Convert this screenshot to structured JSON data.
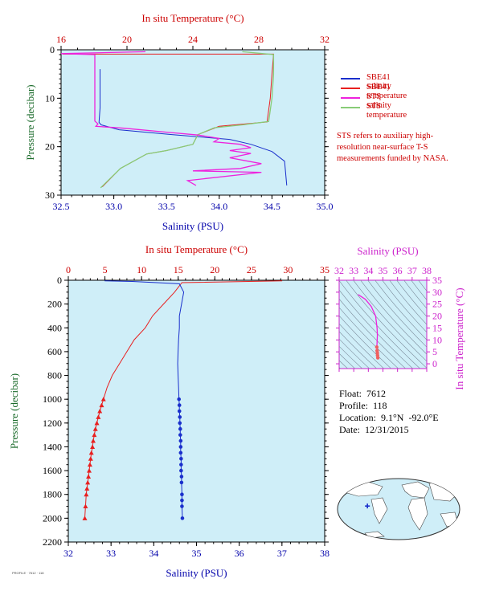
{
  "colors": {
    "plot_bg": "#cfeef8",
    "salinity": "#1a2fcc",
    "temperature": "#e82020",
    "sts_salinity": "#ee22dd",
    "sts_temperature": "#88cc77",
    "temp_axis": "#cc0000",
    "sal_axis": "#0000aa",
    "pressure_axis": "#1a6a2a",
    "ts_axis": "#cc22cc"
  },
  "legend": {
    "items": [
      {
        "label": "SBE41 salinity",
        "color": "#1a2fcc"
      },
      {
        "label": "SBE41 temperature",
        "color": "#e82020"
      },
      {
        "label": "STS salinity",
        "color": "#ee22dd"
      },
      {
        "label": "STS temperature",
        "color": "#88cc77"
      }
    ],
    "note": "STS refers to auxiliary high-resolution near-surface T-S measurements funded by NASA."
  },
  "float_info": {
    "float": "Float:  7612",
    "profile": "Profile:  118",
    "location": "Location:  9.1°N  -92.0°E",
    "date": "Date:  12/31/2015"
  },
  "credit": "PROFILE · 7612 · 118",
  "map": {
    "icon": "world-map-icon",
    "marker_lat": 9.1,
    "marker_lon": -92.0
  },
  "chart_data": [
    {
      "type": "line",
      "name": "upper",
      "top_label": "In situ Temperature (°C)",
      "xlabel": "Salinity (PSU)",
      "ylabel": "Pressure (decibar)",
      "temp_ticks": [
        "16",
        "20",
        "24",
        "28",
        "32"
      ],
      "sal_ticks": [
        "32.5",
        "33.0",
        "33.5",
        "34.0",
        "34.5",
        "35.0"
      ],
      "p_ticks": [
        "0",
        "10",
        "20",
        "30"
      ],
      "xlim_salinity": [
        32.5,
        35.0
      ],
      "xlim_temperature": [
        16,
        32
      ],
      "ylim": [
        30,
        0
      ],
      "series": [
        {
          "key": "sbe41_salinity",
          "axis": "salinity",
          "x": [
            32.87,
            32.87,
            32.86,
            32.88,
            33.05,
            33.55,
            34.1,
            34.3,
            34.5,
            34.62,
            34.64
          ],
          "y": [
            4,
            12,
            15,
            15.5,
            16.5,
            17.5,
            18.5,
            19.5,
            21,
            23,
            28
          ]
        },
        {
          "key": "sbe41_temperature",
          "axis": "temperature",
          "x": [
            16.1,
            28.9,
            28.8,
            28.7,
            28.5,
            25.6,
            24.3,
            24.0,
            22.4,
            21.2,
            19.6,
            18.5
          ],
          "y": [
            0.9,
            0.9,
            5,
            10,
            14.9,
            15.8,
            17.5,
            19.5,
            20.8,
            21.5,
            24.5,
            28.3
          ]
        },
        {
          "key": "sts_salinity",
          "axis": "salinity",
          "x": [
            33.3,
            32.5,
            32.82,
            32.82,
            32.82,
            32.85,
            32.83,
            33.1,
            33.5,
            33.8,
            34.0,
            33.95,
            34.2,
            34.3,
            34.1,
            34.3,
            34.1,
            34.4,
            34.2,
            33.75,
            34.4,
            33.7,
            33.78
          ],
          "y": [
            0.4,
            0.8,
            1.0,
            8,
            14.7,
            15.3,
            15.8,
            16.2,
            17,
            17.6,
            18.3,
            19,
            19.5,
            20.2,
            20.8,
            21.4,
            22.3,
            23.5,
            24.5,
            25,
            25.3,
            27,
            28
          ]
        },
        {
          "key": "sts_temperature",
          "axis": "temperature",
          "x": [
            27.0,
            28.9,
            28.9,
            28.8,
            28.6,
            27.0,
            25.3,
            24.3,
            24.0,
            22.4,
            21.2,
            19.6,
            18.4
          ],
          "y": [
            0.4,
            1.0,
            5,
            10,
            14.8,
            15.5,
            16.1,
            17.5,
            19.5,
            20.8,
            21.5,
            24.5,
            28.5
          ]
        }
      ]
    },
    {
      "type": "line",
      "name": "main",
      "top_label": "In situ Temperature (°C)",
      "xlabel": "Salinity (PSU)",
      "ylabel": "Pressure (decibar)",
      "temp_ticks": [
        "0",
        "5",
        "10",
        "15",
        "20",
        "25",
        "30",
        "35"
      ],
      "sal_ticks": [
        "32",
        "33",
        "34",
        "35",
        "36",
        "37",
        "38"
      ],
      "p_ticks": [
        "0",
        "200",
        "400",
        "600",
        "800",
        "1000",
        "1200",
        "1400",
        "1600",
        "1800",
        "2000",
        "2200"
      ],
      "xlim_salinity": [
        32,
        38
      ],
      "xlim_temperature": [
        0,
        35
      ],
      "ylim": [
        2200,
        0
      ],
      "series": [
        {
          "key": "salinity",
          "axis": "salinity",
          "x": [
            32.85,
            33.5,
            34.6,
            34.7,
            34.65,
            34.6,
            34.6,
            34.58,
            34.57,
            34.56,
            34.57,
            34.58,
            34.59,
            34.6,
            34.6,
            34.61,
            34.61,
            34.62,
            34.62,
            34.63,
            34.63,
            34.63,
            34.64,
            34.64,
            34.64,
            34.65,
            34.65,
            34.66,
            34.66,
            34.66,
            34.67
          ],
          "y": [
            5,
            10,
            30,
            100,
            200,
            300,
            400,
            500,
            600,
            700,
            800,
            900,
            1000,
            1050,
            1100,
            1150,
            1200,
            1250,
            1300,
            1350,
            1400,
            1450,
            1500,
            1550,
            1600,
            1650,
            1700,
            1800,
            1850,
            1900,
            2000
          ]
        },
        {
          "key": "temperature",
          "axis": "temperature",
          "x": [
            29.2,
            15.5,
            14.5,
            13.0,
            11.5,
            10.5,
            9.0,
            8.0,
            7.0,
            6.0,
            5.3,
            4.8,
            4.55,
            4.3,
            4.1,
            3.9,
            3.7,
            3.55,
            3.4,
            3.3,
            3.15,
            3.05,
            2.95,
            2.85,
            2.75,
            2.65,
            2.55,
            2.45,
            2.35,
            2.25
          ],
          "y": [
            5,
            20,
            100,
            200,
            300,
            400,
            500,
            600,
            700,
            800,
            900,
            1000,
            1050,
            1100,
            1150,
            1200,
            1250,
            1300,
            1350,
            1400,
            1450,
            1500,
            1550,
            1600,
            1650,
            1700,
            1750,
            1800,
            1900,
            2000
          ]
        }
      ]
    },
    {
      "type": "line",
      "name": "ts_inset",
      "top_label": "Salinity (PSU)",
      "right_label": "In situ Temperature (°C)",
      "sal_ticks": [
        "32",
        "33",
        "34",
        "35",
        "36",
        "37",
        "38"
      ],
      "temp_ticks": [
        "0",
        "5",
        "10",
        "15",
        "20",
        "25",
        "30",
        "35"
      ],
      "xlim_salinity": [
        32,
        38
      ],
      "ylim_temperature": [
        -2,
        35
      ],
      "series": [
        {
          "key": "ts",
          "x": [
            33.3,
            33.8,
            34.2,
            34.5,
            34.6,
            34.62,
            34.6,
            34.58,
            34.6,
            34.62,
            34.63,
            34.65
          ],
          "y": [
            29,
            27,
            24,
            20,
            15,
            12,
            9,
            7,
            5.5,
            4.5,
            3.5,
            2.5
          ]
        }
      ]
    }
  ]
}
